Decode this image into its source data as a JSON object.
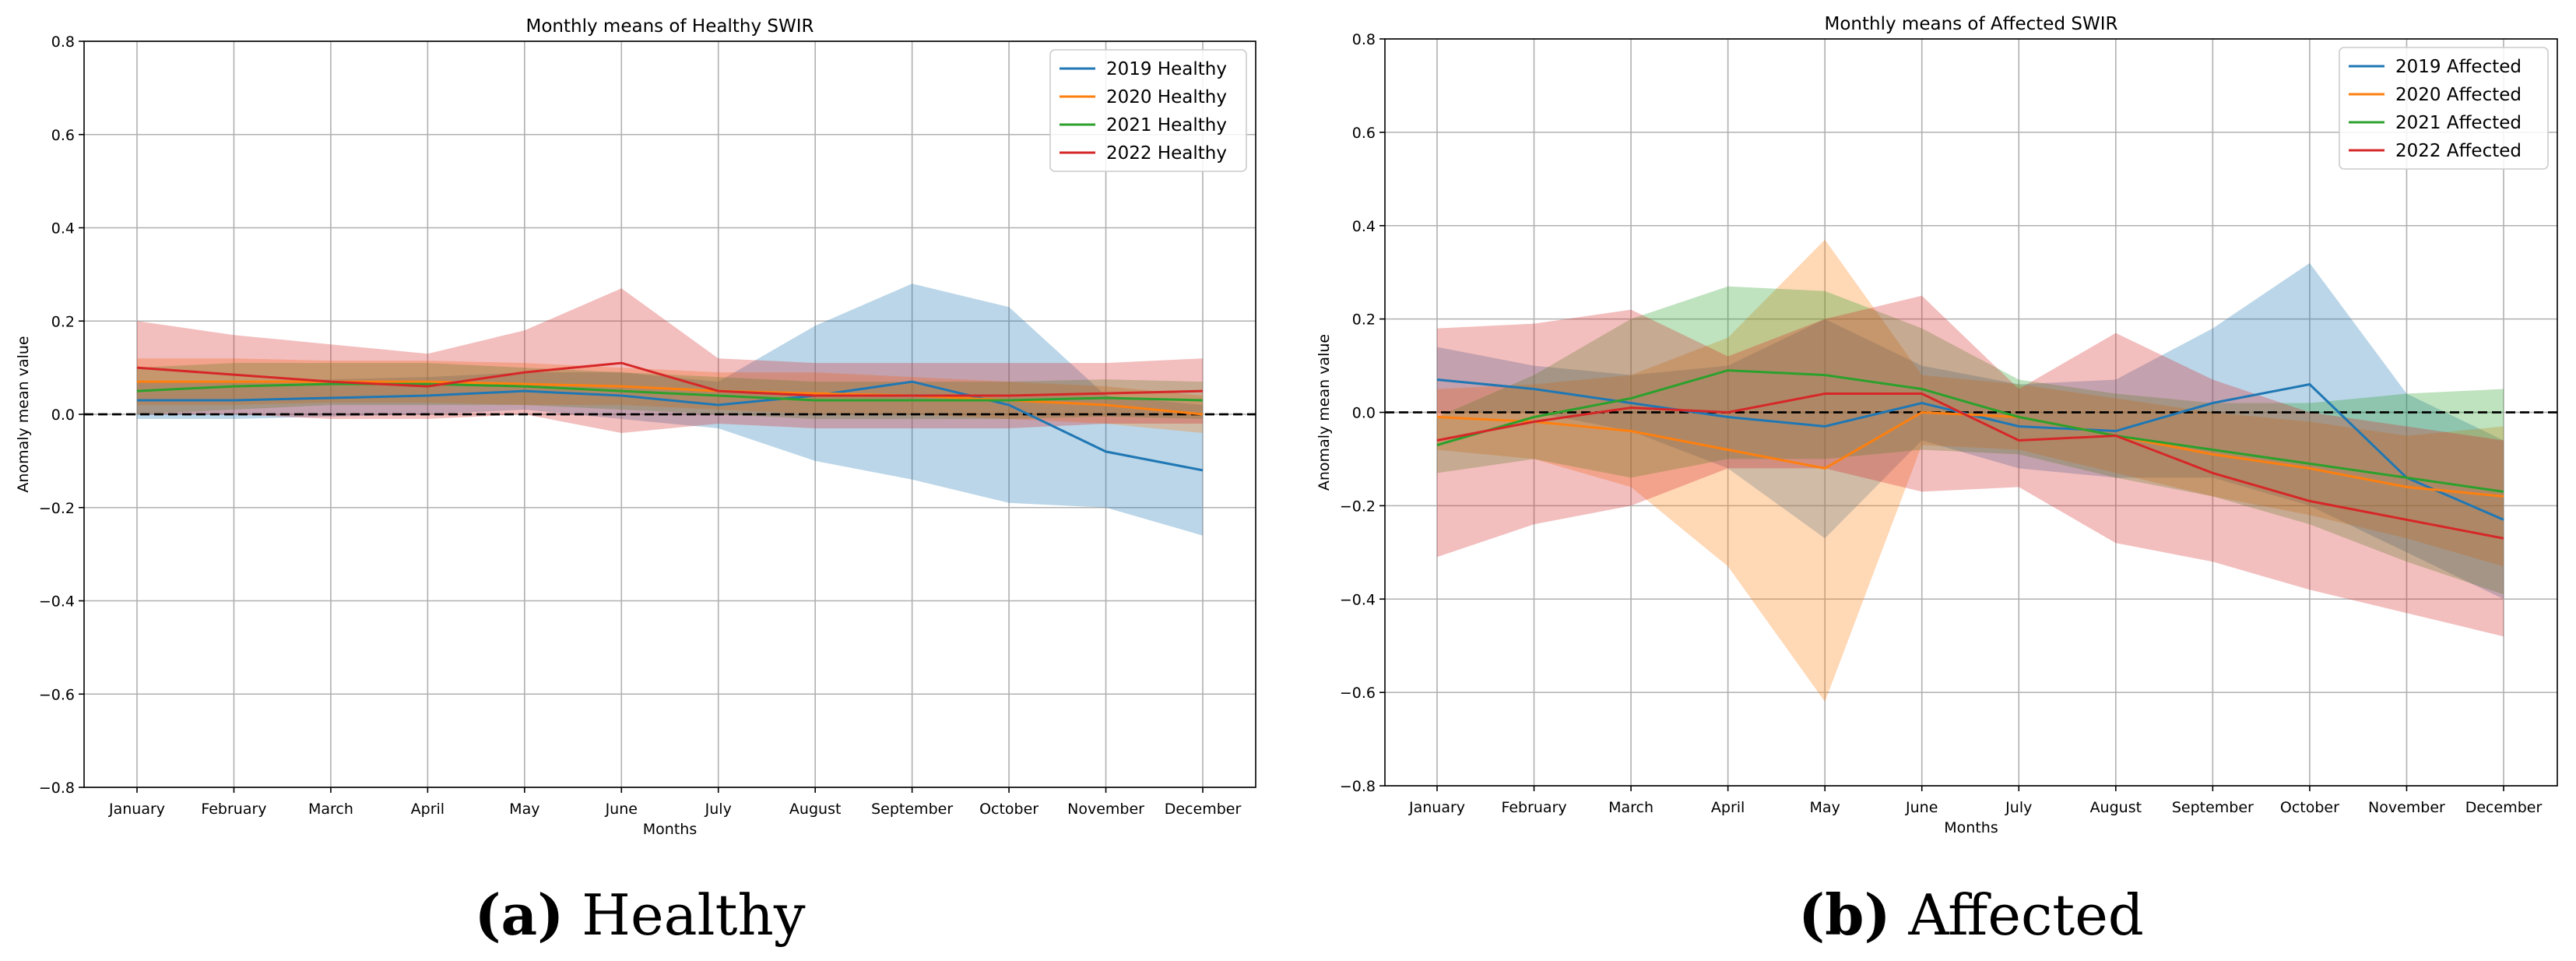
{
  "chart_data": [
    {
      "type": "line",
      "title": "Monthly means of Healthy SWIR",
      "xlabel": "Months",
      "ylabel": "Anomaly mean value",
      "ylim": [
        -0.8,
        0.8
      ],
      "yticks": [
        "0.8",
        "0.6",
        "0.4",
        "0.2",
        "0.0",
        "−0.2",
        "−0.4",
        "−0.6",
        "−0.8"
      ],
      "ytick_values": [
        0.8,
        0.6,
        0.4,
        0.2,
        0.0,
        -0.2,
        -0.4,
        -0.6,
        -0.8
      ],
      "grid": true,
      "legend_position": "top-right",
      "reference_line": 0.0,
      "categories": [
        "January",
        "February",
        "March",
        "April",
        "May",
        "June",
        "July",
        "August",
        "September",
        "October",
        "November",
        "December"
      ],
      "series": [
        {
          "name": "2019 Healthy",
          "color": "#1f77b4",
          "values": [
            0.03,
            0.03,
            0.035,
            0.04,
            0.05,
            0.04,
            0.02,
            0.04,
            0.07,
            0.02,
            -0.08,
            -0.12
          ],
          "upper": [
            0.07,
            0.07,
            0.075,
            0.08,
            0.09,
            0.09,
            0.07,
            0.19,
            0.28,
            0.23,
            0.04,
            0.02
          ],
          "lower": [
            -0.01,
            -0.01,
            -0.005,
            0.0,
            0.01,
            -0.01,
            -0.03,
            -0.1,
            -0.14,
            -0.19,
            -0.2,
            -0.26
          ]
        },
        {
          "name": "2020 Healthy",
          "color": "#ff7f0e",
          "values": [
            0.07,
            0.07,
            0.07,
            0.07,
            0.065,
            0.06,
            0.05,
            0.045,
            0.04,
            0.03,
            0.02,
            0.0
          ],
          "upper": [
            0.12,
            0.12,
            0.115,
            0.115,
            0.11,
            0.1,
            0.09,
            0.09,
            0.08,
            0.07,
            0.06,
            0.04
          ],
          "lower": [
            0.02,
            0.02,
            0.025,
            0.025,
            0.02,
            0.02,
            0.01,
            0.0,
            0.0,
            -0.01,
            -0.02,
            -0.04
          ]
        },
        {
          "name": "2021 Healthy",
          "color": "#2ca02c",
          "values": [
            0.05,
            0.06,
            0.065,
            0.065,
            0.06,
            0.05,
            0.04,
            0.03,
            0.03,
            0.03,
            0.035,
            0.03
          ],
          "upper": [
            0.1,
            0.11,
            0.11,
            0.11,
            0.1,
            0.09,
            0.08,
            0.07,
            0.07,
            0.07,
            0.075,
            0.07
          ],
          "lower": [
            0.0,
            0.01,
            0.02,
            0.02,
            0.02,
            0.01,
            0.0,
            -0.01,
            -0.01,
            -0.01,
            -0.005,
            -0.01
          ]
        },
        {
          "name": "2022 Healthy",
          "color": "#d62728",
          "values": [
            0.1,
            0.085,
            0.07,
            0.06,
            0.09,
            0.11,
            0.05,
            0.04,
            0.04,
            0.04,
            0.045,
            0.05
          ],
          "upper": [
            0.2,
            0.17,
            0.15,
            0.13,
            0.18,
            0.27,
            0.12,
            0.11,
            0.11,
            0.11,
            0.11,
            0.12
          ],
          "lower": [
            0.0,
            0.0,
            -0.01,
            -0.01,
            0.0,
            -0.04,
            -0.02,
            -0.03,
            -0.03,
            -0.03,
            -0.02,
            -0.02
          ]
        }
      ]
    },
    {
      "type": "line",
      "title": "Monthly means of Affected SWIR",
      "xlabel": "Months",
      "ylabel": "Anomaly mean value",
      "ylim": [
        -0.8,
        0.8
      ],
      "yticks": [
        "0.8",
        "0.6",
        "0.4",
        "0.2",
        "0.0",
        "−0.2",
        "−0.4",
        "−0.6",
        "−0.8"
      ],
      "ytick_values": [
        0.8,
        0.6,
        0.4,
        0.2,
        0.0,
        -0.2,
        -0.4,
        -0.6,
        -0.8
      ],
      "grid": true,
      "legend_position": "top-right",
      "reference_line": 0.0,
      "categories": [
        "January",
        "February",
        "March",
        "April",
        "May",
        "June",
        "July",
        "August",
        "September",
        "October",
        "November",
        "December"
      ],
      "series": [
        {
          "name": "2019 Affected",
          "color": "#1f77b4",
          "values": [
            0.07,
            0.05,
            0.02,
            -0.01,
            -0.03,
            0.02,
            -0.03,
            -0.04,
            0.02,
            0.06,
            -0.14,
            -0.23
          ],
          "upper": [
            0.14,
            0.1,
            0.08,
            0.1,
            0.2,
            0.1,
            0.06,
            0.07,
            0.18,
            0.32,
            0.04,
            -0.06
          ],
          "lower": [
            0.0,
            0.0,
            -0.04,
            -0.12,
            -0.27,
            -0.06,
            -0.12,
            -0.14,
            -0.14,
            -0.2,
            -0.3,
            -0.4
          ]
        },
        {
          "name": "2020 Affected",
          "color": "#ff7f0e",
          "values": [
            -0.01,
            -0.02,
            -0.04,
            -0.08,
            -0.12,
            0.0,
            -0.01,
            -0.05,
            -0.09,
            -0.12,
            -0.16,
            -0.18
          ],
          "upper": [
            0.05,
            0.06,
            0.08,
            0.16,
            0.37,
            0.08,
            0.06,
            0.03,
            0.0,
            -0.02,
            -0.05,
            -0.03
          ],
          "lower": [
            -0.08,
            -0.1,
            -0.16,
            -0.33,
            -0.62,
            -0.07,
            -0.08,
            -0.13,
            -0.18,
            -0.22,
            -0.27,
            -0.33
          ]
        },
        {
          "name": "2021 Affected",
          "color": "#2ca02c",
          "values": [
            -0.07,
            -0.01,
            0.03,
            0.09,
            0.08,
            0.05,
            -0.01,
            -0.05,
            -0.08,
            -0.11,
            -0.14,
            -0.17
          ],
          "upper": [
            -0.01,
            0.08,
            0.2,
            0.27,
            0.26,
            0.18,
            0.07,
            0.04,
            0.02,
            0.02,
            0.04,
            0.05
          ],
          "lower": [
            -0.13,
            -0.1,
            -0.14,
            -0.1,
            -0.1,
            -0.08,
            -0.09,
            -0.14,
            -0.18,
            -0.24,
            -0.32,
            -0.39
          ]
        },
        {
          "name": "2022 Affected",
          "color": "#d62728",
          "values": [
            -0.06,
            -0.02,
            0.01,
            0.0,
            0.04,
            0.04,
            -0.06,
            -0.05,
            -0.13,
            -0.19,
            -0.23,
            -0.27
          ],
          "upper": [
            0.18,
            0.19,
            0.22,
            0.12,
            0.2,
            0.25,
            0.05,
            0.17,
            0.07,
            0.0,
            -0.03,
            -0.06
          ],
          "lower": [
            -0.31,
            -0.24,
            -0.2,
            -0.12,
            -0.12,
            -0.17,
            -0.16,
            -0.28,
            -0.32,
            -0.38,
            -0.43,
            -0.48
          ]
        }
      ]
    }
  ],
  "subcaptions": [
    {
      "letter": "(a)",
      "text": " Healthy"
    },
    {
      "letter": "(b)",
      "text": " Affected"
    }
  ]
}
